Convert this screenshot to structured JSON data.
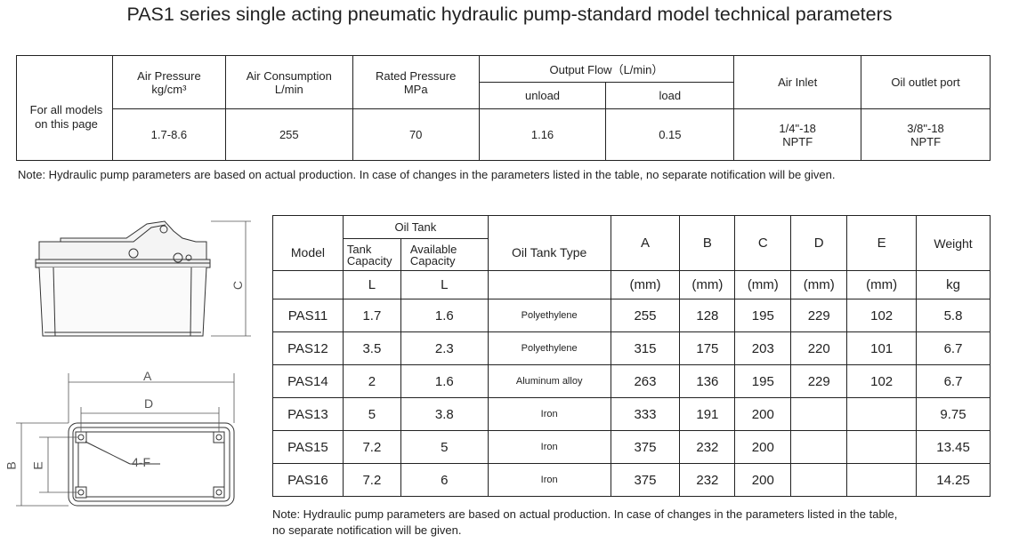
{
  "title": "PAS1 series single acting pneumatic hydraulic pump-standard model technical parameters",
  "tech_table": {
    "row_label": "For all models on this page",
    "headers": {
      "air_pressure": "Air Pressure",
      "air_pressure_unit": "kg/cm³",
      "air_consumption": "Air Consumption",
      "air_consumption_unit": "L/min",
      "rated_pressure": "Rated Pressure",
      "rated_pressure_unit": "MPa",
      "output_flow": "Output Flow（L/min）",
      "unload": "unload",
      "load": "load",
      "air_inlet": "Air Inlet",
      "oil_outlet": "Oil outlet port"
    },
    "values": {
      "air_pressure": "1.7-8.6",
      "air_consumption": "255",
      "rated_pressure": "70",
      "unload": "1.16",
      "load": "0.15",
      "air_inlet_1": "1/4\"-18",
      "air_inlet_2": "NPTF",
      "oil_outlet_1": "3/8\"-18",
      "oil_outlet_2": "NPTF"
    }
  },
  "note_top": "Note: Hydraulic pump parameters are based on actual production. In case of changes in the parameters listed in the table, no separate notification will be given.",
  "drawing_labels": {
    "c": "C",
    "a": "A",
    "d": "D",
    "b": "B",
    "e": "E",
    "holes": "4-F"
  },
  "model_table": {
    "headers": {
      "model": "Model",
      "oil_tank": "Oil Tank",
      "tank_capacity_1": "Tank",
      "tank_capacity_2": "Capacity",
      "available_capacity_1": "Available",
      "available_capacity_2": "Capacity",
      "oil_tank_type": "Oil Tank Type",
      "a": "A",
      "b": "B",
      "c": "C",
      "d": "D",
      "e": "E",
      "weight": "Weight"
    },
    "units": {
      "tank": "L",
      "available": "L",
      "a": "(mm)",
      "b": "(mm)",
      "c": "(mm)",
      "d": "(mm)",
      "e": "(mm)",
      "weight": "kg"
    },
    "rows": [
      {
        "model": "PAS11",
        "tank": "1.7",
        "available": "1.6",
        "type": "Polyethylene",
        "a": "255",
        "b": "128",
        "c": "195",
        "d": "229",
        "e": "102",
        "weight": "5.8"
      },
      {
        "model": "PAS12",
        "tank": "3.5",
        "available": "2.3",
        "type": "Polyethylene",
        "a": "315",
        "b": "175",
        "c": "203",
        "d": "220",
        "e": "101",
        "weight": "6.7"
      },
      {
        "model": "PAS14",
        "tank": "2",
        "available": "1.6",
        "type": "Aluminum alloy",
        "a": "263",
        "b": "136",
        "c": "195",
        "d": "229",
        "e": "102",
        "weight": "6.7"
      },
      {
        "model": "PAS13",
        "tank": "5",
        "available": "3.8",
        "type": "Iron",
        "a": "333",
        "b": "191",
        "c": "200",
        "d": "",
        "e": "",
        "weight": "9.75"
      },
      {
        "model": "PAS15",
        "tank": "7.2",
        "available": "5",
        "type": "Iron",
        "a": "375",
        "b": "232",
        "c": "200",
        "d": "",
        "e": "",
        "weight": "13.45"
      },
      {
        "model": "PAS16",
        "tank": "7.2",
        "available": "6",
        "type": "Iron",
        "a": "375",
        "b": "232",
        "c": "200",
        "d": "",
        "e": "",
        "weight": "14.25"
      }
    ]
  },
  "note_bottom_1": "Note: Hydraulic pump parameters are based on actual production. In case of changes in the parameters listed in the table,",
  "note_bottom_2": "no separate notification will be given."
}
